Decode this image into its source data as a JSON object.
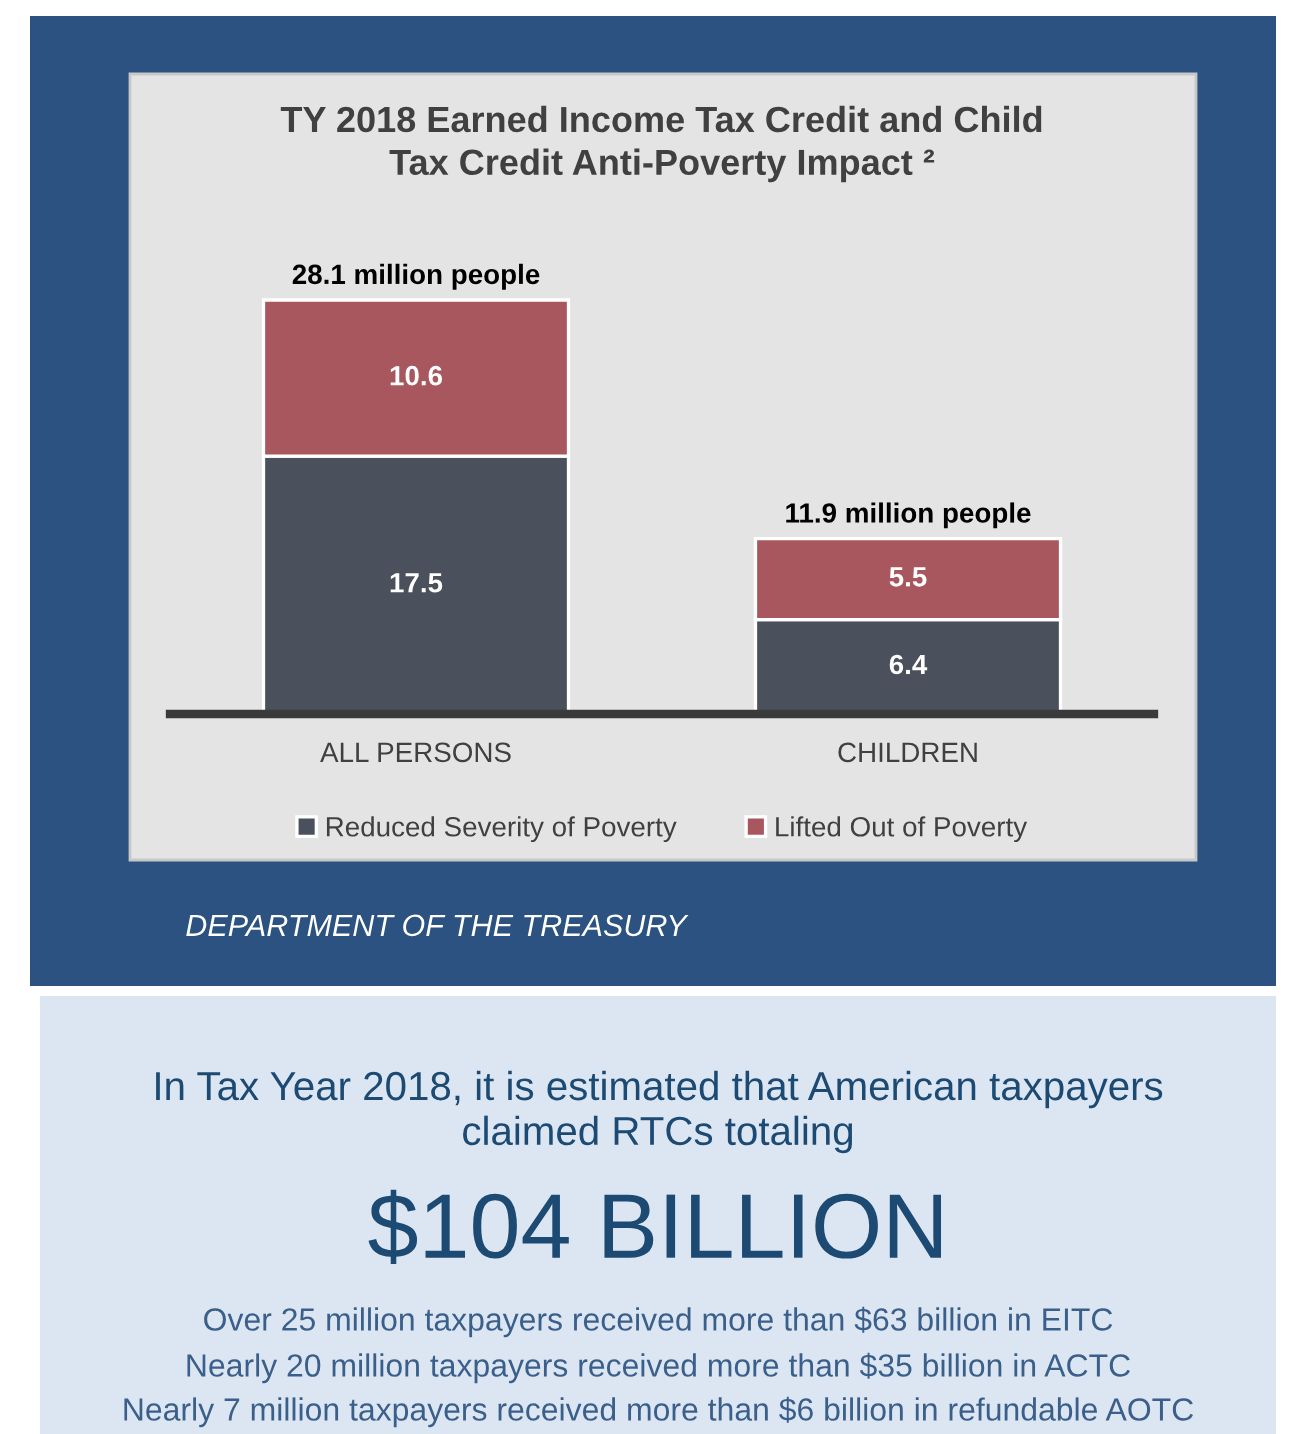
{
  "chart_data": {
    "type": "bar",
    "title": "TY 2018 Earned Income Tax Credit and Child\nTax Credit Anti-Poverty Impact ²",
    "categories": [
      "ALL PERSONS",
      "CHILDREN"
    ],
    "stacked": true,
    "series": [
      {
        "name": "Reduced Severity of Poverty",
        "color": "#4a505c",
        "values": [
          17.5,
          6.4
        ]
      },
      {
        "name": "Lifted Out of Poverty",
        "color": "#a9575e",
        "values": [
          10.6,
          5.5
        ]
      }
    ],
    "data_labels": true,
    "totals": [
      "28.1 million people",
      "11.9 million people"
    ],
    "legend": "bottom",
    "grid": false,
    "annotations": [
      "DEPARTMENT OF THE TREASURY",
      "In Tax Year 2018, it is estimated that American taxpayers\nclaimed RTCs totaling",
      "$104 BILLION",
      "Over 25 million taxpayers received more than $63 billion in EITC",
      "Nearly 20 million taxpayers received more than $35 billion in ACTC",
      "Nearly 7 million taxpayers received more than $6 billion in refundable AOTC"
    ]
  }
}
